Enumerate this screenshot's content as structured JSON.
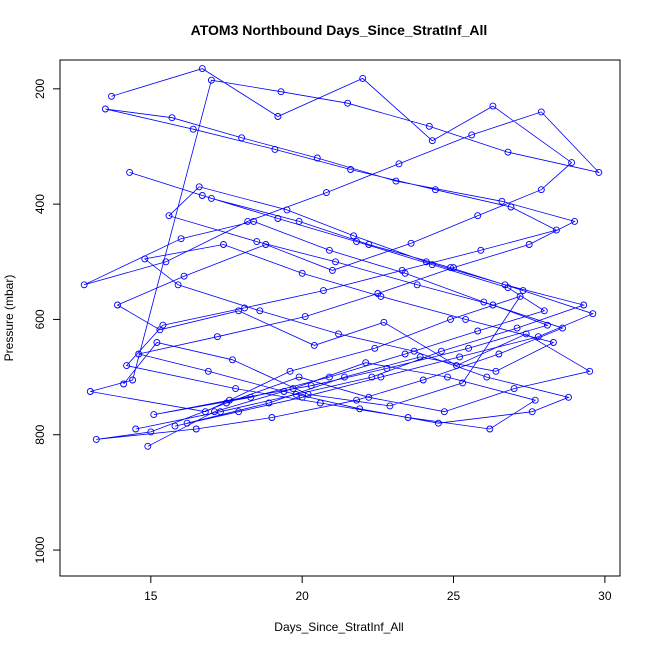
{
  "chart_data": {
    "type": "line",
    "title": "ATOM3 Northbound Days_Since_StratInf_All",
    "xlabel": "Days_Since_StratInf_All",
    "ylabel": "Pressure (mbar)",
    "xlim": [
      12,
      30.5
    ],
    "ylim": [
      1045,
      150
    ],
    "y_reversed": true,
    "x_ticks": [
      15,
      20,
      25,
      30
    ],
    "y_ticks": [
      200,
      400,
      600,
      800,
      1000
    ],
    "grid": false,
    "legend": "none",
    "marker": "open-circle",
    "series_color": "#0000ff",
    "series": [
      {
        "x": [
          13.7,
          16.7,
          19.2,
          22.0,
          24.3,
          26.3,
          28.9,
          27.9,
          25.8,
          23.6,
          21.0,
          18.8,
          16.1,
          13.9,
          15.3,
          17.9,
          20.4,
          22.7,
          25.1,
          27.4,
          29.5,
          27.0,
          24.7,
          22.2,
          19.9,
          17.5,
          15.0,
          13.2,
          16.5,
          19.0,
          21.8,
          24.0,
          26.5,
          28.6,
          26.0,
          23.4,
          20.9,
          18.4,
          16.0,
          12.8,
          15.5,
          18.2,
          20.8,
          23.2,
          25.6,
          27.9,
          29.8,
          26.8,
          24.2,
          21.5,
          19.3,
          17.0,
          14.4,
          13.0,
          16.8,
          19.6,
          22.4,
          24.9,
          27.2,
          25.3,
          22.9,
          20.2,
          17.7,
          15.2,
          14.1
        ],
        "y": [
          213,
          165,
          248,
          182,
          290,
          230,
          328,
          375,
          420,
          468,
          515,
          470,
          525,
          575,
          618,
          585,
          645,
          605,
          680,
          625,
          690,
          720,
          760,
          735,
          700,
          745,
          795,
          808,
          790,
          770,
          740,
          705,
          660,
          615,
          570,
          520,
          480,
          430,
          460,
          540,
          500,
          430,
          380,
          330,
          280,
          240,
          345,
          310,
          265,
          225,
          205,
          185,
          705,
          725,
          760,
          690,
          650,
          600,
          560,
          710,
          750,
          730,
          670,
          640,
          712
        ]
      },
      {
        "x": [
          16.2,
          18.9,
          21.4,
          23.9,
          26.4,
          28.3,
          25.4,
          22.6,
          20.0,
          17.4,
          14.8,
          15.9,
          18.6,
          21.2,
          23.7,
          26.1,
          28.8,
          27.6,
          24.5,
          21.9,
          19.4,
          16.9,
          14.6,
          17.2,
          20.1,
          22.5,
          25.0,
          27.5,
          29.0,
          26.6,
          23.1,
          20.5,
          18.0,
          15.7,
          13.5,
          16.4,
          19.1,
          21.6,
          24.4,
          26.9,
          28.4,
          25.9,
          23.3,
          20.7,
          18.1,
          15.4,
          14.2,
          17.8,
          20.6,
          23.5,
          26.2,
          27.7,
          24.8,
          22.1,
          19.7,
          17.1,
          14.9
        ],
        "y": [
          780,
          745,
          700,
          665,
          690,
          640,
          600,
          560,
          520,
          470,
          495,
          540,
          585,
          625,
          655,
          700,
          735,
          760,
          780,
          755,
          725,
          690,
          660,
          630,
          595,
          555,
          510,
          470,
          430,
          395,
          360,
          320,
          285,
          250,
          235,
          270,
          305,
          340,
          375,
          405,
          445,
          480,
          515,
          550,
          580,
          610,
          680,
          720,
          745,
          770,
          790,
          740,
          700,
          675,
          720,
          760,
          820
        ]
      },
      {
        "x": [
          14.5,
          17.3,
          19.8,
          22.3,
          24.6,
          27.1,
          29.3,
          26.7,
          24.1,
          21.7,
          19.5,
          16.6,
          15.6,
          18.5,
          21.1,
          23.8,
          26.3,
          28.1,
          25.5,
          22.8,
          20.3,
          17.6,
          15.1,
          18.3,
          20.9,
          23.4,
          25.8,
          28.0,
          26.8,
          24.3,
          21.8,
          19.2,
          16.7,
          14.3,
          17.0,
          19.9,
          22.2,
          24.9,
          27.3,
          29.6,
          27.8,
          25.2,
          22.6,
          20.0,
          17.9,
          15.8
        ],
        "y": [
          790,
          760,
          730,
          700,
          655,
          615,
          575,
          540,
          500,
          455,
          410,
          370,
          420,
          465,
          500,
          540,
          575,
          610,
          650,
          685,
          715,
          740,
          765,
          735,
          700,
          660,
          620,
          585,
          545,
          505,
          465,
          425,
          385,
          345,
          390,
          430,
          470,
          510,
          550,
          590,
          630,
          665,
          700,
          735,
          760,
          785
        ]
      }
    ]
  }
}
